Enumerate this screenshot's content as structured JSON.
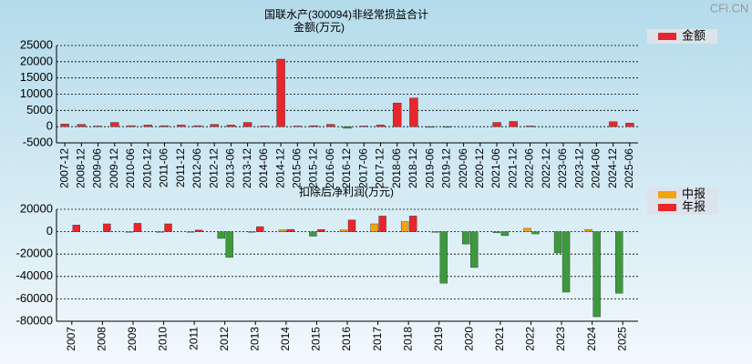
{
  "watermark": "CFi.CN",
  "chart_data": [
    {
      "type": "bar",
      "title": "国联水产(300094)非经常损益合计",
      "subtitle": "金额(万元)",
      "categories": [
        "2007-12",
        "2008-12",
        "2009-06",
        "2009-12",
        "2010-06",
        "2010-12",
        "2011-06",
        "2011-12",
        "2012-06",
        "2012-12",
        "2013-06",
        "2013-12",
        "2014-06",
        "2014-12",
        "2015-06",
        "2015-12",
        "2016-06",
        "2016-12",
        "2017-06",
        "2017-12",
        "2018-06",
        "2018-12",
        "2019-06",
        "2019-12",
        "2020-06",
        "2020-12",
        "2021-06",
        "2021-12",
        "2022-06",
        "2022-12",
        "2023-06",
        "2023-12",
        "2024-06",
        "2024-12",
        "2025-06"
      ],
      "series": [
        {
          "name": "金额",
          "color": "#e8262b",
          "values": [
            800,
            700,
            200,
            1300,
            300,
            500,
            300,
            500,
            300,
            700,
            500,
            1300,
            200,
            20800,
            200,
            300,
            700,
            -500,
            200,
            500,
            7300,
            8800,
            -200,
            -200,
            0,
            0,
            1300,
            1600,
            200,
            0,
            0,
            0,
            0,
            1500,
            1100
          ]
        }
      ],
      "negative_color": "#3c9a3c",
      "ylim": [
        -5000,
        25000
      ],
      "yticks": [
        -5000,
        0,
        5000,
        10000,
        15000,
        20000,
        25000
      ],
      "grid": true,
      "legend": "top-right"
    },
    {
      "type": "bar",
      "title": "扣除后净利润(万元)",
      "categories": [
        "2007",
        "2008",
        "2009",
        "2010",
        "2011",
        "2012",
        "2013",
        "2014",
        "2015",
        "2016",
        "2017",
        "2018",
        "2019",
        "2020",
        "2021",
        "2022",
        "2023",
        "2024",
        "2025"
      ],
      "series": [
        {
          "name": "中报",
          "color": "#f5a30f",
          "values": [
            0,
            0,
            -500,
            -500,
            -500,
            -6000,
            -500,
            1500,
            -4000,
            1500,
            7000,
            9000,
            -500,
            -11000,
            -1000,
            3000,
            -19000,
            2000,
            -55000
          ]
        },
        {
          "name": "年报",
          "color": "#e8262b",
          "values": [
            6000,
            7000,
            7500,
            7000,
            1500,
            -23000,
            4500,
            2000,
            2000,
            10500,
            14000,
            14000,
            -46000,
            -32000,
            -3500,
            -2000,
            -54000,
            -76000,
            null
          ]
        }
      ],
      "negative_color": "#3c9a3c",
      "ylim": [
        -80000,
        20000
      ],
      "yticks": [
        -80000,
        -60000,
        -40000,
        -20000,
        0,
        20000
      ],
      "grid": true,
      "legend": "top-right"
    }
  ]
}
